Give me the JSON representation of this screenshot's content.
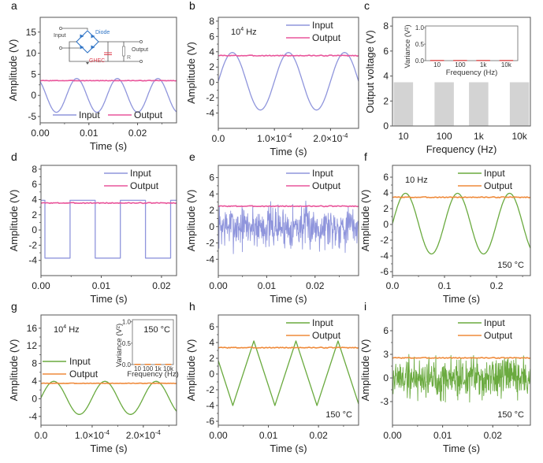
{
  "figure": {
    "panels": [
      "a",
      "b",
      "c",
      "d",
      "e",
      "f",
      "g",
      "h",
      "i"
    ]
  },
  "colors": {
    "input_blue": "#8f95dc",
    "output_pink": "#e9559b",
    "input_green": "#6aaa3f",
    "output_orange": "#ef8a3a",
    "bar_gray": "#d3d3d3",
    "inset_red": "#e06060",
    "diode_blue": "#2f74c6",
    "ghec_red": "#e04050"
  },
  "chart_data": [
    {
      "panel": "a",
      "type": "line",
      "xlabel": "Time (s)",
      "ylabel": "Amplitude (V)",
      "xlim": [
        0,
        0.028
      ],
      "ylim": [
        -6.5,
        18.5
      ],
      "xticks": [
        0,
        0.01,
        0.02
      ],
      "xtick_labels": [
        "0.00",
        "0.01",
        "0.02"
      ],
      "yticks": [
        -5,
        0,
        5,
        10,
        15
      ],
      "ytick_labels": [
        "-5",
        "0",
        "5",
        "10",
        "15"
      ],
      "legend": {
        "placement": "bottom",
        "entries": [
          "Input",
          "Output"
        ]
      },
      "series": [
        {
          "name": "Input",
          "shape": "sine",
          "amplitude": 4.0,
          "offset": 0,
          "frequency_hz": 120,
          "phase_start": 2.2,
          "color_key": "input_blue"
        },
        {
          "name": "Output",
          "shape": "constant",
          "value": 3.5,
          "color_key": "output_pink"
        }
      ],
      "inset_circuit": {
        "labels": {
          "input": "Input",
          "diode": "Diode",
          "ghec": "GHEC",
          "output": "Output",
          "resistor": "R"
        }
      }
    },
    {
      "panel": "b",
      "type": "line",
      "xlabel": "Time (s)",
      "ylabel": "Amplitude (V)",
      "xlim": [
        0,
        0.00025
      ],
      "ylim": [
        -6,
        8.5
      ],
      "xticks": [
        0,
        0.0001,
        0.0002
      ],
      "xtick_labels": [
        "0.0",
        "1.0×10⁻⁴",
        "2.0×10⁻⁴"
      ],
      "yticks": [
        -4,
        -2,
        0,
        2,
        4,
        6,
        8
      ],
      "ytick_labels": [
        "-4",
        "-2",
        "0",
        "2",
        "4",
        "6",
        "8"
      ],
      "annotation": "10⁴ Hz",
      "legend": {
        "placement": "top-right",
        "entries": [
          "Input",
          "Output"
        ]
      },
      "series": [
        {
          "name": "Input",
          "shape": "sine",
          "amplitude": 3.75,
          "offset": 0.15,
          "frequency_hz": 10000,
          "phase_start": 0,
          "color_key": "input_blue"
        },
        {
          "name": "Output",
          "shape": "constant",
          "value": 3.5,
          "color_key": "output_pink"
        }
      ]
    },
    {
      "panel": "c",
      "type": "bar",
      "xlabel": "Frequency (Hz)",
      "ylabel": "Output voltage (V)",
      "categories": [
        "10",
        "100",
        "1k",
        "10k"
      ],
      "values": [
        3.5,
        3.5,
        3.5,
        3.5
      ],
      "ylim": [
        0,
        8.7
      ],
      "yticks": [
        0,
        2,
        4,
        6,
        8
      ],
      "ytick_labels": [
        "0",
        "2",
        "4",
        "6",
        "8"
      ],
      "color_key": "bar_gray",
      "inset": {
        "type": "bar",
        "xlabel": "Frequency (Hz)",
        "ylabel": "Variance (V²)",
        "categories": [
          "10",
          "100",
          "1k",
          "10k"
        ],
        "values": [
          0.0,
          0.0,
          0.0,
          0.0
        ],
        "ylim": [
          0,
          1.05
        ],
        "yticks": [
          0.0,
          0.5,
          1.0
        ],
        "ytick_labels": [
          "0.0",
          "0.5",
          "1.0"
        ],
        "color_key": "inset_red"
      }
    },
    {
      "panel": "d",
      "type": "line",
      "xlabel": "Time (s)",
      "ylabel": "Amplitude (V)",
      "xlim": [
        0,
        0.0225
      ],
      "ylim": [
        -6,
        8.5
      ],
      "xticks": [
        0,
        0.01,
        0.02
      ],
      "xtick_labels": [
        "0.00",
        "0.01",
        "0.02"
      ],
      "yticks": [
        -4,
        -2,
        0,
        2,
        4,
        6,
        8
      ],
      "ytick_labels": [
        "-4",
        "-2",
        "0",
        "2",
        "4",
        "6",
        "8"
      ],
      "legend": {
        "placement": "top-right",
        "entries": [
          "Input",
          "Output"
        ]
      },
      "series": [
        {
          "name": "Input",
          "shape": "square",
          "high": 3.9,
          "low": -3.7,
          "period_s": 0.00835,
          "first_fall_s": 0.00065,
          "color_key": "input_blue"
        },
        {
          "name": "Output",
          "shape": "constant",
          "value": 3.55,
          "color_key": "output_pink"
        }
      ]
    },
    {
      "panel": "e",
      "type": "line",
      "xlabel": "Time (s)",
      "ylabel": "Amplitude (V)",
      "xlim": [
        0,
        0.029
      ],
      "ylim": [
        -6,
        7.5
      ],
      "xticks": [
        0,
        0.01,
        0.02
      ],
      "xtick_labels": [
        "0.00",
        "0.01",
        "0.02"
      ],
      "yticks": [
        -4,
        -2,
        0,
        2,
        4,
        6
      ],
      "ytick_labels": [
        "-4",
        "-2",
        "0",
        "2",
        "4",
        "6"
      ],
      "legend": {
        "placement": "top-right",
        "entries": [
          "Input",
          "Output"
        ]
      },
      "series": [
        {
          "name": "Input",
          "shape": "noise",
          "mean": 0,
          "spread": 1.3,
          "min": -3.7,
          "max": 4.0,
          "samples": 420,
          "seed": 7,
          "color_key": "input_blue"
        },
        {
          "name": "Output",
          "shape": "constant",
          "value": 2.5,
          "color_key": "output_pink"
        }
      ]
    },
    {
      "panel": "f",
      "type": "line",
      "xlabel": "Time (s)",
      "ylabel": "Amplitude (V)",
      "xlim": [
        0,
        0.265
      ],
      "ylim": [
        -6.5,
        7.5
      ],
      "xticks": [
        0,
        0.1,
        0.2
      ],
      "xtick_labels": [
        "0.0",
        "0.1",
        "0.2"
      ],
      "yticks": [
        -6,
        -4,
        -2,
        0,
        2,
        4,
        6
      ],
      "ytick_labels": [
        "-6",
        "-4",
        "-2",
        "0",
        "2",
        "4",
        "6"
      ],
      "annotation": "10 Hz",
      "annotation2": "150 °C",
      "legend": {
        "placement": "top-right",
        "entries": [
          "Input",
          "Output"
        ]
      },
      "series": [
        {
          "name": "Input",
          "shape": "sine",
          "amplitude": 3.85,
          "offset": 0.1,
          "frequency_hz": 10,
          "phase_start": 0,
          "color_key": "input_green"
        },
        {
          "name": "Output",
          "shape": "constant",
          "value": 3.45,
          "color_key": "output_orange"
        }
      ]
    },
    {
      "panel": "g",
      "type": "line",
      "xlabel": "Time (s)",
      "ylabel": "Amplitude (V)",
      "xlim": [
        0,
        0.000265
      ],
      "ylim": [
        -6,
        19
      ],
      "xticks": [
        0,
        0.0001,
        0.0002
      ],
      "xtick_labels": [
        "0.0",
        "1.0×10⁻⁴",
        "2.0×10⁻⁴"
      ],
      "yticks": [
        -4,
        0,
        4,
        8,
        12,
        16
      ],
      "ytick_labels": [
        "-4",
        "0",
        "4",
        "8",
        "12",
        "16"
      ],
      "annotation": "10⁴ Hz",
      "legend": {
        "placement": "left",
        "entries": [
          "Input",
          "Output"
        ]
      },
      "series": [
        {
          "name": "Input",
          "shape": "sine",
          "amplitude": 3.75,
          "offset": 0.2,
          "frequency_hz": 10000,
          "phase_start": 0,
          "color_key": "input_green"
        },
        {
          "name": "Output",
          "shape": "constant",
          "value": 3.5,
          "color_key": "output_orange"
        }
      ],
      "inset": {
        "type": "bar",
        "xlabel": "Frequency (Hz)",
        "ylabel": "Variance (V²)",
        "categories": [
          "10",
          "100",
          "1k",
          "10k"
        ],
        "values": [
          0.0,
          0.0,
          0.0,
          0.0
        ],
        "ylim": [
          0,
          1.05
        ],
        "yticks": [
          0.0,
          0.5,
          1.0
        ],
        "ytick_labels": [
          "0.0",
          "0.5",
          "1.0"
        ],
        "annotation": "150 °C",
        "color_key": "output_orange"
      }
    },
    {
      "panel": "h",
      "type": "line",
      "xlabel": "Time (s)",
      "ylabel": "Amplitude (V)",
      "xlim": [
        0,
        0.028
      ],
      "ylim": [
        -6.5,
        7.5
      ],
      "xticks": [
        0,
        0.01,
        0.02
      ],
      "xtick_labels": [
        "0.00",
        "0.01",
        "0.02"
      ],
      "yticks": [
        -6,
        -4,
        -2,
        0,
        2,
        4,
        6
      ],
      "ytick_labels": [
        "-6",
        "-4",
        "-2",
        "0",
        "2",
        "4",
        "6"
      ],
      "annotation2": "150 °C",
      "legend": {
        "placement": "top-right",
        "entries": [
          "Input",
          "Output"
        ]
      },
      "series": [
        {
          "name": "Input",
          "shape": "triangle",
          "high": 4.2,
          "low": -4.0,
          "period_s": 0.0084,
          "first_peak_s": 0.0071,
          "start_value": 1.7,
          "color_key": "input_green"
        },
        {
          "name": "Output",
          "shape": "constant",
          "value": 3.35,
          "color_key": "output_orange"
        }
      ]
    },
    {
      "panel": "i",
      "type": "line",
      "xlabel": "Time (s)",
      "ylabel": "Amplitude (V)",
      "xlim": [
        0,
        0.0275
      ],
      "ylim": [
        -6,
        8
      ],
      "xticks": [
        0,
        0.01,
        0.02
      ],
      "xtick_labels": [
        "0.00",
        "0.01",
        "0.02"
      ],
      "yticks": [
        -3,
        0,
        3,
        6
      ],
      "ytick_labels": [
        "-3",
        "0",
        "3",
        "6"
      ],
      "annotation2": "150 °C",
      "legend": {
        "placement": "top-right",
        "entries": [
          "Input",
          "Output"
        ]
      },
      "series": [
        {
          "name": "Input",
          "shape": "noise",
          "mean": 0,
          "spread": 1.35,
          "min": -3.9,
          "max": 4.1,
          "samples": 420,
          "seed": 19,
          "color_key": "input_green"
        },
        {
          "name": "Output",
          "shape": "constant",
          "value": 2.55,
          "color_key": "output_orange"
        }
      ]
    }
  ]
}
